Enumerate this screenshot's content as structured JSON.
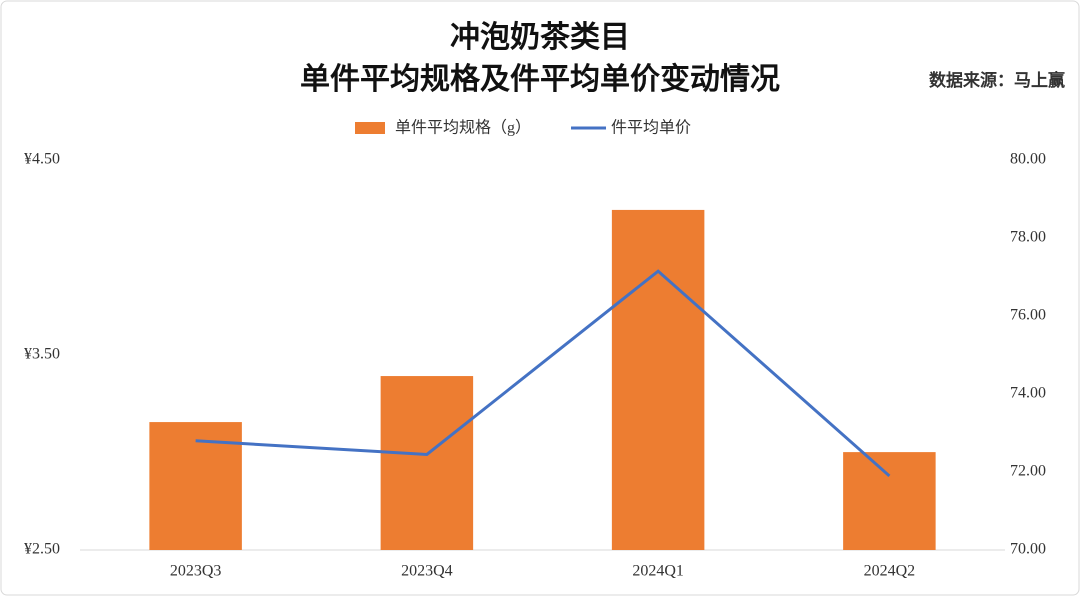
{
  "chart_data": {
    "type": "bar-line",
    "title": [
      "冲泡奶茶类目",
      "单件平均规格及件平均单价变动情况"
    ],
    "source": "数据来源：马上赢",
    "categories": [
      "2023Q3",
      "2023Q4",
      "2024Q1",
      "2024Q2"
    ],
    "series": [
      {
        "name": "单件平均规格（g）",
        "type": "bar",
        "color": "#ed7d31",
        "axis": "y2",
        "values": [
          73.28,
          74.46,
          78.72,
          72.51
        ]
      },
      {
        "name": "件平均单价",
        "type": "line",
        "color": "#4472c4",
        "axis": "y",
        "values": [
          3.06,
          2.99,
          3.93,
          2.88
        ]
      }
    ],
    "ylim": [
      2.5,
      4.5
    ],
    "yticks": [
      {
        "value": 2.5,
        "label": "¥2.50"
      },
      {
        "value": 3.5,
        "label": "¥3.50"
      },
      {
        "value": 4.5,
        "label": "¥4.50"
      }
    ],
    "y2lim": [
      70,
      80
    ],
    "y2ticks": [
      {
        "value": 70,
        "label": "70.00"
      },
      {
        "value": 72,
        "label": "72.00"
      },
      {
        "value": 74,
        "label": "74.00"
      },
      {
        "value": 76,
        "label": "76.00"
      },
      {
        "value": 78,
        "label": "78.00"
      },
      {
        "value": 80,
        "label": "80.00"
      }
    ],
    "grid": false,
    "legend": "top"
  }
}
